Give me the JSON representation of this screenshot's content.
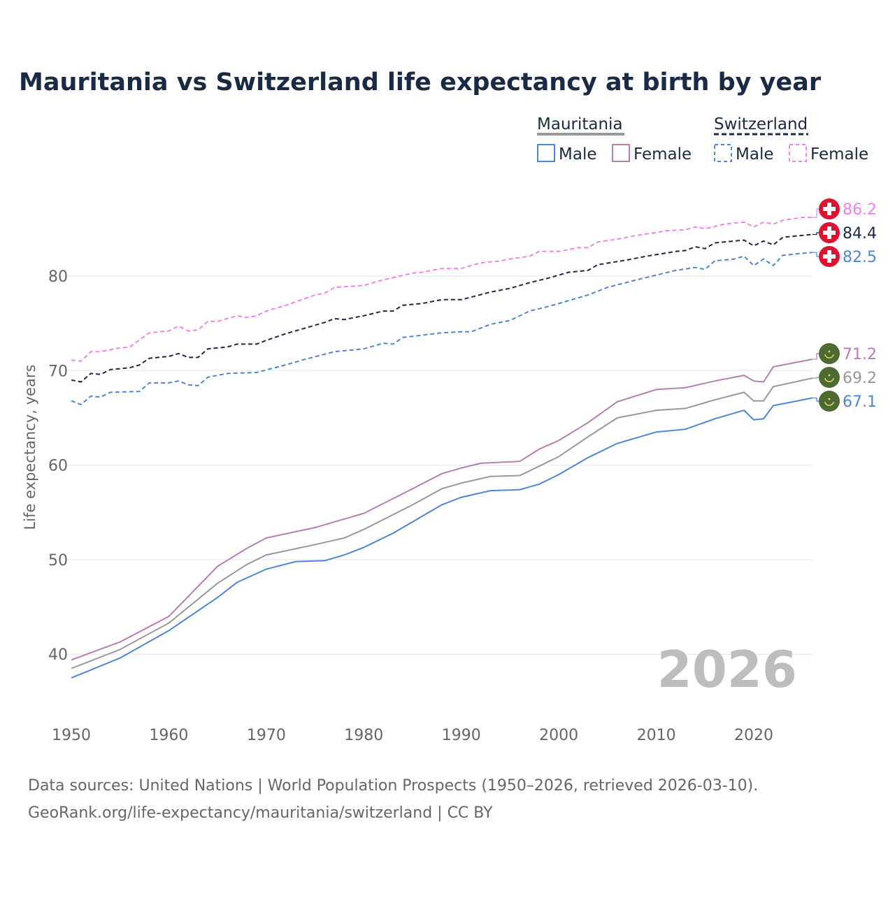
{
  "chart_data": {
    "type": "line",
    "title": "Mauritania vs Switzerland life expectancy at birth by year",
    "ylabel": "Life expectancy, years",
    "xlabel": "",
    "xlim": [
      1950,
      2026
    ],
    "ylim": [
      35,
      90
    ],
    "xticks": [
      1950,
      1960,
      1970,
      1980,
      1990,
      2000,
      2010,
      2020
    ],
    "yticks": [
      40,
      50,
      60,
      70,
      80
    ],
    "year_watermark": "2026",
    "legend": {
      "placement": "top-right",
      "groups": [
        {
          "country": "Mauritania",
          "items": [
            "Male",
            "Female"
          ]
        },
        {
          "country": "Switzerland",
          "items": [
            "Male",
            "Female"
          ]
        }
      ]
    },
    "series": [
      {
        "name": "Switzerland Female",
        "country": "Switzerland",
        "color": "#f57ef3",
        "dashed": true,
        "end_label": "86.2",
        "points": [
          [
            1950,
            71.1
          ],
          [
            1951,
            71.0
          ],
          [
            1952,
            72.0
          ],
          [
            1953,
            72.0
          ],
          [
            1955,
            72.4
          ],
          [
            1956,
            72.5
          ],
          [
            1958,
            74.0
          ],
          [
            1960,
            74.2
          ],
          [
            1961,
            74.7
          ],
          [
            1962,
            74.2
          ],
          [
            1963,
            74.3
          ],
          [
            1964,
            75.2
          ],
          [
            1965,
            75.2
          ],
          [
            1967,
            75.8
          ],
          [
            1968,
            75.6
          ],
          [
            1969,
            75.8
          ],
          [
            1970,
            76.3
          ],
          [
            1972,
            76.9
          ],
          [
            1975,
            78.0
          ],
          [
            1976,
            78.2
          ],
          [
            1977,
            78.8
          ],
          [
            1980,
            79.0
          ],
          [
            1982,
            79.6
          ],
          [
            1985,
            80.3
          ],
          [
            1986,
            80.4
          ],
          [
            1988,
            80.8
          ],
          [
            1990,
            80.8
          ],
          [
            1992,
            81.4
          ],
          [
            1994,
            81.6
          ],
          [
            1995,
            81.8
          ],
          [
            1997,
            82.1
          ],
          [
            1998,
            82.6
          ],
          [
            2000,
            82.6
          ],
          [
            2002,
            83.0
          ],
          [
            2003,
            83.0
          ],
          [
            2004,
            83.6
          ],
          [
            2006,
            83.9
          ],
          [
            2008,
            84.3
          ],
          [
            2010,
            84.6
          ],
          [
            2011,
            84.8
          ],
          [
            2013,
            84.9
          ],
          [
            2014,
            85.2
          ],
          [
            2015,
            85.0
          ],
          [
            2017,
            85.5
          ],
          [
            2019,
            85.7
          ],
          [
            2020,
            85.2
          ],
          [
            2021,
            85.7
          ],
          [
            2022,
            85.5
          ],
          [
            2023,
            85.9
          ],
          [
            2025,
            86.2
          ],
          [
            2026,
            86.2
          ]
        ]
      },
      {
        "name": "Switzerland Total",
        "country": "Switzerland",
        "color": "#1b2a44",
        "dashed": true,
        "end_label": "84.4",
        "points": [
          [
            1950,
            69.0
          ],
          [
            1951,
            68.8
          ],
          [
            1952,
            69.7
          ],
          [
            1953,
            69.6
          ],
          [
            1954,
            70.1
          ],
          [
            1956,
            70.3
          ],
          [
            1957,
            70.6
          ],
          [
            1958,
            71.3
          ],
          [
            1960,
            71.5
          ],
          [
            1961,
            71.8
          ],
          [
            1962,
            71.4
          ],
          [
            1963,
            71.4
          ],
          [
            1964,
            72.3
          ],
          [
            1966,
            72.5
          ],
          [
            1967,
            72.8
          ],
          [
            1969,
            72.8
          ],
          [
            1970,
            73.2
          ],
          [
            1972,
            73.9
          ],
          [
            1974,
            74.5
          ],
          [
            1976,
            75.1
          ],
          [
            1977,
            75.5
          ],
          [
            1978,
            75.4
          ],
          [
            1980,
            75.8
          ],
          [
            1982,
            76.3
          ],
          [
            1983,
            76.3
          ],
          [
            1984,
            76.9
          ],
          [
            1986,
            77.1
          ],
          [
            1988,
            77.5
          ],
          [
            1990,
            77.5
          ],
          [
            1993,
            78.3
          ],
          [
            1995,
            78.7
          ],
          [
            1997,
            79.3
          ],
          [
            1999,
            79.8
          ],
          [
            2001,
            80.4
          ],
          [
            2003,
            80.6
          ],
          [
            2004,
            81.2
          ],
          [
            2007,
            81.7
          ],
          [
            2009,
            82.1
          ],
          [
            2012,
            82.6
          ],
          [
            2013,
            82.7
          ],
          [
            2014,
            83.1
          ],
          [
            2015,
            82.9
          ],
          [
            2016,
            83.5
          ],
          [
            2018,
            83.7
          ],
          [
            2019,
            83.8
          ],
          [
            2020,
            83.2
          ],
          [
            2021,
            83.7
          ],
          [
            2022,
            83.3
          ],
          [
            2023,
            84.1
          ],
          [
            2026,
            84.4
          ]
        ]
      },
      {
        "name": "Switzerland Male",
        "country": "Switzerland",
        "color": "#4a85e0",
        "dashed": true,
        "end_label": "82.5",
        "points": [
          [
            1950,
            66.8
          ],
          [
            1951,
            66.4
          ],
          [
            1952,
            67.3
          ],
          [
            1953,
            67.2
          ],
          [
            1954,
            67.7
          ],
          [
            1957,
            67.8
          ],
          [
            1958,
            68.7
          ],
          [
            1960,
            68.7
          ],
          [
            1961,
            68.9
          ],
          [
            1962,
            68.5
          ],
          [
            1963,
            68.4
          ],
          [
            1964,
            69.3
          ],
          [
            1966,
            69.7
          ],
          [
            1969,
            69.8
          ],
          [
            1972,
            70.6
          ],
          [
            1974,
            71.2
          ],
          [
            1977,
            72.0
          ],
          [
            1980,
            72.3
          ],
          [
            1982,
            72.9
          ],
          [
            1983,
            72.8
          ],
          [
            1984,
            73.5
          ],
          [
            1988,
            74.0
          ],
          [
            1990,
            74.1
          ],
          [
            1991,
            74.1
          ],
          [
            1993,
            74.9
          ],
          [
            1995,
            75.3
          ],
          [
            1997,
            76.3
          ],
          [
            1999,
            76.8
          ],
          [
            2001,
            77.4
          ],
          [
            2003,
            78.0
          ],
          [
            2005,
            78.8
          ],
          [
            2008,
            79.6
          ],
          [
            2010,
            80.1
          ],
          [
            2012,
            80.6
          ],
          [
            2014,
            80.9
          ],
          [
            2015,
            80.7
          ],
          [
            2016,
            81.6
          ],
          [
            2018,
            81.8
          ],
          [
            2019,
            82.1
          ],
          [
            2020,
            81.1
          ],
          [
            2021,
            81.8
          ],
          [
            2022,
            81.1
          ],
          [
            2023,
            82.2
          ],
          [
            2026,
            82.5
          ]
        ]
      },
      {
        "name": "Mauritania Female",
        "country": "Mauritania",
        "color": "#b87bb6",
        "dashed": false,
        "end_label": "71.2",
        "points": [
          [
            1950,
            39.4
          ],
          [
            1955,
            41.3
          ],
          [
            1960,
            44.0
          ],
          [
            1965,
            49.3
          ],
          [
            1968,
            51.2
          ],
          [
            1970,
            52.3
          ],
          [
            1975,
            53.4
          ],
          [
            1978,
            54.3
          ],
          [
            1980,
            54.9
          ],
          [
            1985,
            57.5
          ],
          [
            1988,
            59.1
          ],
          [
            1990,
            59.7
          ],
          [
            1992,
            60.2
          ],
          [
            1996,
            60.4
          ],
          [
            1998,
            61.7
          ],
          [
            2000,
            62.6
          ],
          [
            2003,
            64.5
          ],
          [
            2006,
            66.7
          ],
          [
            2010,
            68.0
          ],
          [
            2013,
            68.2
          ],
          [
            2016,
            68.9
          ],
          [
            2019,
            69.5
          ],
          [
            2020,
            68.9
          ],
          [
            2021,
            68.8
          ],
          [
            2022,
            70.4
          ],
          [
            2024,
            70.8
          ],
          [
            2026,
            71.2
          ]
        ]
      },
      {
        "name": "Mauritania Total",
        "country": "Mauritania",
        "color": "#999999",
        "dashed": false,
        "end_label": "69.2",
        "points": [
          [
            1950,
            38.5
          ],
          [
            1955,
            40.5
          ],
          [
            1960,
            43.3
          ],
          [
            1965,
            47.5
          ],
          [
            1968,
            49.5
          ],
          [
            1970,
            50.5
          ],
          [
            1975,
            51.6
          ],
          [
            1978,
            52.3
          ],
          [
            1980,
            53.2
          ],
          [
            1985,
            55.8
          ],
          [
            1988,
            57.5
          ],
          [
            1990,
            58.1
          ],
          [
            1993,
            58.8
          ],
          [
            1996,
            58.9
          ],
          [
            2000,
            60.9
          ],
          [
            2003,
            63.0
          ],
          [
            2006,
            65.0
          ],
          [
            2010,
            65.8
          ],
          [
            2013,
            66.0
          ],
          [
            2016,
            66.9
          ],
          [
            2019,
            67.7
          ],
          [
            2020,
            66.8
          ],
          [
            2021,
            66.8
          ],
          [
            2022,
            68.3
          ],
          [
            2026,
            69.2
          ]
        ]
      },
      {
        "name": "Mauritania Male",
        "country": "Mauritania",
        "color": "#4a85e0",
        "dashed": false,
        "end_label": "67.1",
        "points": [
          [
            1950,
            37.5
          ],
          [
            1955,
            39.6
          ],
          [
            1960,
            42.5
          ],
          [
            1965,
            46.0
          ],
          [
            1967,
            47.6
          ],
          [
            1970,
            49.0
          ],
          [
            1973,
            49.8
          ],
          [
            1976,
            49.9
          ],
          [
            1978,
            50.5
          ],
          [
            1980,
            51.3
          ],
          [
            1983,
            52.8
          ],
          [
            1985,
            54.0
          ],
          [
            1988,
            55.8
          ],
          [
            1990,
            56.6
          ],
          [
            1993,
            57.3
          ],
          [
            1996,
            57.4
          ],
          [
            1998,
            58.0
          ],
          [
            2000,
            59.0
          ],
          [
            2003,
            60.8
          ],
          [
            2006,
            62.3
          ],
          [
            2010,
            63.5
          ],
          [
            2013,
            63.8
          ],
          [
            2016,
            64.9
          ],
          [
            2019,
            65.8
          ],
          [
            2020,
            64.8
          ],
          [
            2021,
            64.9
          ],
          [
            2022,
            66.3
          ],
          [
            2026,
            67.1
          ]
        ]
      }
    ]
  },
  "footer": {
    "line1": "Data sources: United Nations | World Population Prospects (1950–2026, retrieved 2026-03-10).",
    "line2": "GeoRank.org/life-expectancy/mauritania/switzerland | CC BY"
  },
  "colors": {
    "title": "#1b2a44",
    "swiss_flag": "#e0102f",
    "mauritania_flag": "#4d6b30",
    "grid": "#e6e6e6",
    "axis_text": "#666666",
    "watermark": "#bdbdbd"
  }
}
